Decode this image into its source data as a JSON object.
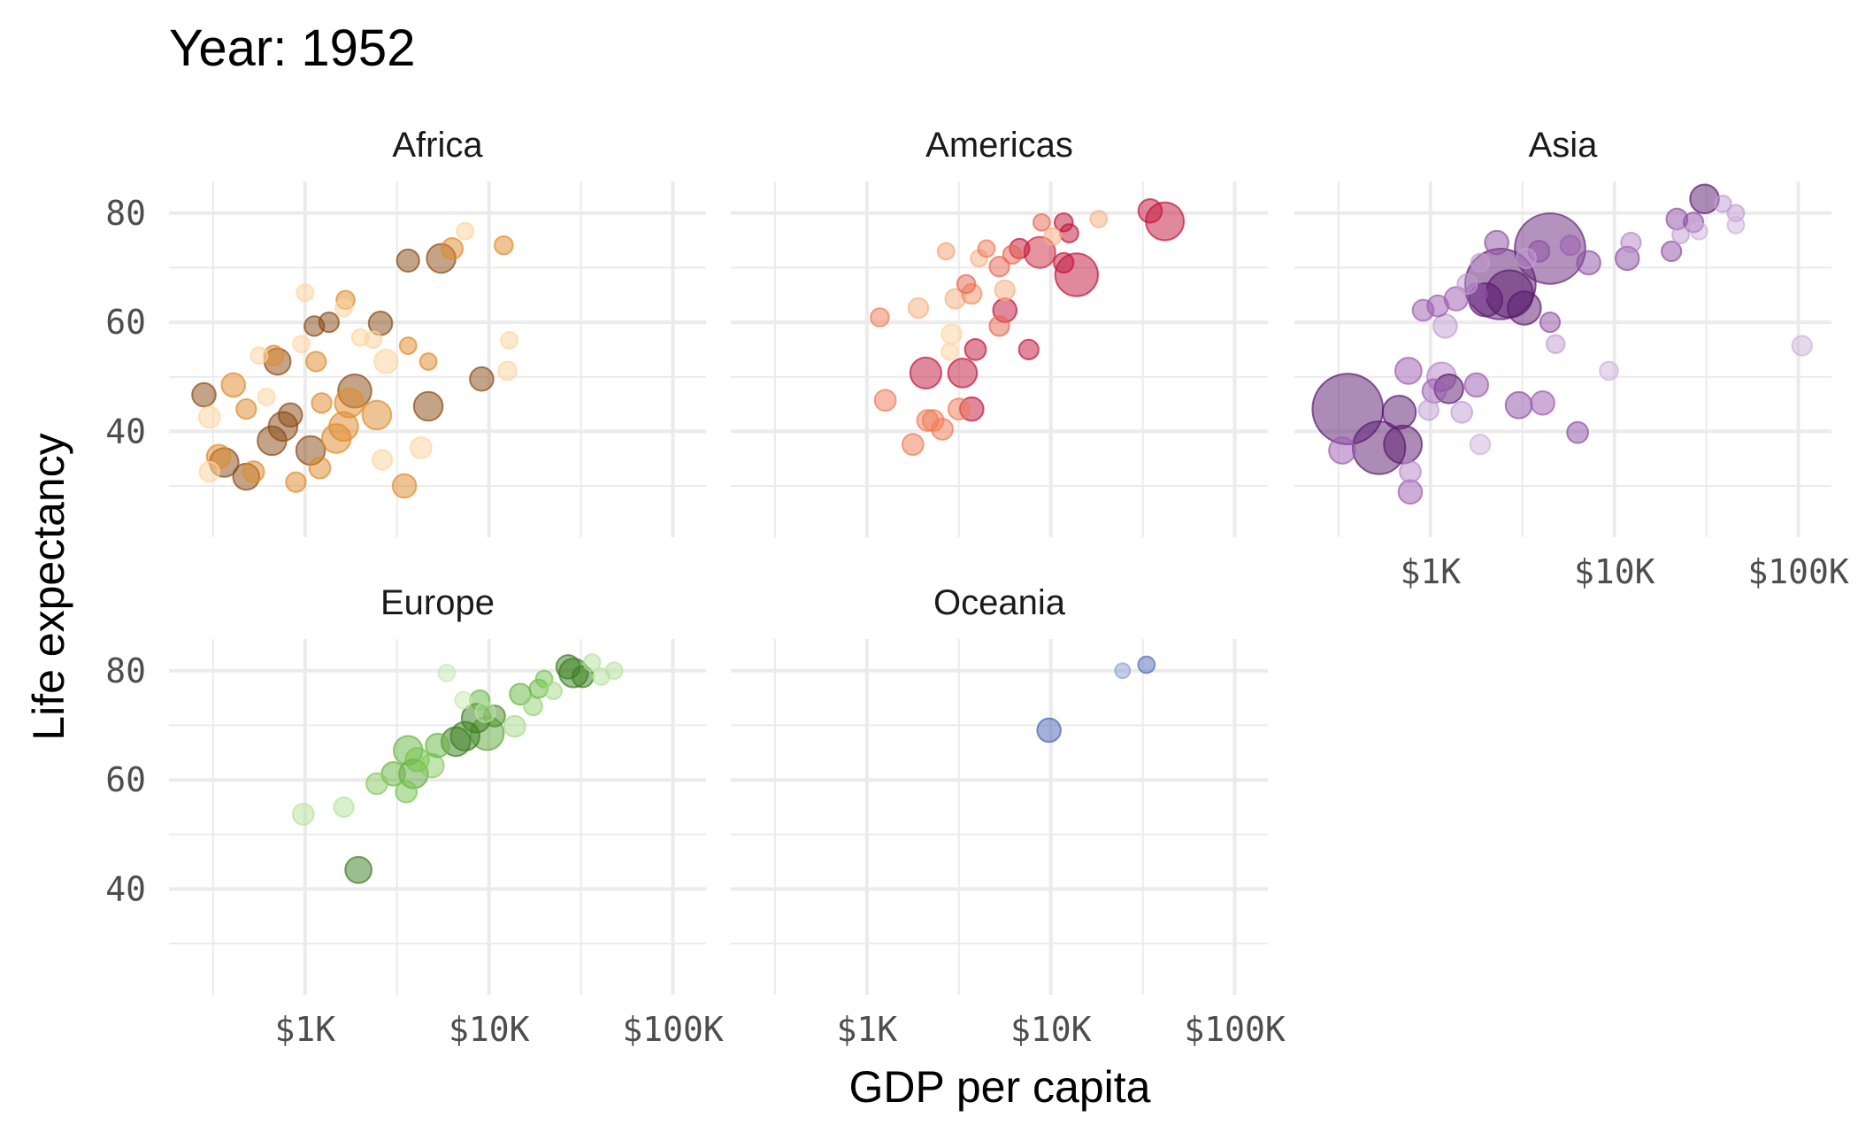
{
  "chart_data": {
    "type": "scatter",
    "title": "Year: 1952",
    "xlabel": "GDP per capita",
    "ylabel": "Life expectancy",
    "x_scale": "log10",
    "x_ticks": [
      {
        "value": 1000,
        "label": "$1K"
      },
      {
        "value": 10000,
        "label": "$10K"
      },
      {
        "value": 100000,
        "label": "$100K"
      }
    ],
    "y_ticks": [
      {
        "value": 40,
        "label": "40"
      },
      {
        "value": 60,
        "label": "60"
      },
      {
        "value": 80,
        "label": "80"
      }
    ],
    "xlim_log10": [
      2.26,
      5.18
    ],
    "ylim": [
      20.6,
      85.8
    ],
    "grid": true,
    "point_format": [
      "log10_gdp",
      "life_expectancy",
      "relative_population",
      "shade"
    ],
    "facets": [
      {
        "name": "Africa",
        "colors": [
          "#fdd49e",
          "#e08a2a",
          "#8a4a14"
        ],
        "points": [
          [
            2.45,
            46.7,
            2,
            1
          ],
          [
            2.48,
            42.6,
            1.6,
            0
          ],
          [
            2.53,
            35.4,
            2,
            0.5
          ],
          [
            2.56,
            34.3,
            3,
            1
          ],
          [
            2.48,
            32.6,
            1.4,
            0
          ],
          [
            2.61,
            48.5,
            2,
            0.5
          ],
          [
            2.68,
            44.1,
            1.4,
            0.5
          ],
          [
            2.68,
            31.7,
            2.5,
            1
          ],
          [
            2.72,
            32.6,
            1.6,
            0.5
          ],
          [
            2.79,
            46.3,
            1,
            0
          ],
          [
            2.83,
            53.9,
            1.4,
            0.5
          ],
          [
            2.85,
            52.8,
            2.5,
            1
          ],
          [
            2.88,
            40.9,
            3,
            1
          ],
          [
            2.92,
            43,
            2,
            1
          ],
          [
            2.95,
            30.7,
            1.4,
            0.5
          ],
          [
            3.0,
            65.4,
            1,
            0
          ],
          [
            3.03,
            36.5,
            3,
            1
          ],
          [
            3.05,
            59.3,
            1.4,
            1
          ],
          [
            3.06,
            52.8,
            1.4,
            0.5
          ],
          [
            3.09,
            45.2,
            1.4,
            0.5
          ],
          [
            3.13,
            60,
            1.4,
            1
          ],
          [
            3.17,
            38.7,
            3,
            0.5
          ],
          [
            3.21,
            62.6,
            1,
            0
          ],
          [
            3.22,
            64.1,
            1.2,
            0.5
          ],
          [
            3.24,
            45.2,
            3,
            0.5
          ],
          [
            3.27,
            47.4,
            4,
            1
          ],
          [
            3.3,
            57.2,
            1,
            0
          ],
          [
            3.39,
            43,
            3,
            0.5
          ],
          [
            3.41,
            59.8,
            2,
            1
          ],
          [
            3.42,
            34.8,
            1.4,
            0
          ],
          [
            3.44,
            52.8,
            2,
            0
          ],
          [
            3.56,
            71.3,
            1.8,
            1
          ],
          [
            3.56,
            55.7,
            1,
            0.5
          ],
          [
            3.54,
            30,
            2,
            0.5
          ],
          [
            3.67,
            52.8,
            1,
            0.5
          ],
          [
            3.63,
            37,
            1.6,
            0
          ],
          [
            3.67,
            44.6,
            3,
            1
          ],
          [
            3.74,
            71.7,
            3,
            1
          ],
          [
            3.8,
            73.5,
            1.6,
            0.5
          ],
          [
            3.87,
            76.7,
            1,
            0
          ],
          [
            3.96,
            49.6,
            2,
            1
          ],
          [
            4.08,
            74.1,
            1.2,
            0.5
          ],
          [
            4.1,
            51.1,
            1.2,
            0
          ],
          [
            4.11,
            56.7,
            1,
            0
          ],
          [
            3.21,
            40.9,
            3,
            0.5
          ],
          [
            2.82,
            38.3,
            3,
            1
          ],
          [
            2.98,
            56,
            1,
            0
          ],
          [
            2.75,
            53.9,
            1,
            0
          ],
          [
            3.08,
            33.3,
            1.6,
            0.5
          ],
          [
            3.37,
            56.8,
            1,
            0
          ]
        ]
      },
      {
        "name": "Americas",
        "colors": [
          "#fdd49e",
          "#f07b55",
          "#c2143a"
        ],
        "points": [
          [
            3.07,
            60.9,
            1.2,
            0.5
          ],
          [
            3.1,
            45.7,
            1.6,
            0.5
          ],
          [
            3.25,
            37.6,
            1.6,
            0.5
          ],
          [
            3.28,
            62.6,
            1.4,
            0.2
          ],
          [
            3.32,
            50.7,
            3.5,
            1
          ],
          [
            3.33,
            42,
            1.6,
            0.5
          ],
          [
            3.36,
            42,
            1.6,
            0.5
          ],
          [
            3.41,
            40.4,
            1.6,
            0.5
          ],
          [
            3.43,
            73,
            1,
            0.3
          ],
          [
            3.45,
            54.6,
            1,
            0
          ],
          [
            3.46,
            57.8,
            1.4,
            0
          ],
          [
            3.48,
            64.3,
            1.4,
            0.2
          ],
          [
            3.5,
            44.1,
            1.6,
            0.5
          ],
          [
            3.52,
            50.7,
            3,
            1
          ],
          [
            3.54,
            67,
            1.2,
            0.6
          ],
          [
            3.59,
            55,
            1.6,
            1
          ],
          [
            3.57,
            65.2,
            1.4,
            0.4
          ],
          [
            3.57,
            44.1,
            2,
            1
          ],
          [
            3.61,
            71.7,
            1,
            0.2
          ],
          [
            3.65,
            73.5,
            1,
            0.5
          ],
          [
            3.72,
            70.2,
            1.4,
            0.6
          ],
          [
            3.75,
            65.9,
            1.4,
            0.2
          ],
          [
            3.75,
            62.2,
            2,
            1
          ],
          [
            3.72,
            59.3,
            1.4,
            0.6
          ],
          [
            3.79,
            72.4,
            1.2,
            0.6
          ],
          [
            3.83,
            73.5,
            1.4,
            1
          ],
          [
            3.88,
            55,
            1.4,
            1
          ],
          [
            3.94,
            72.8,
            3.5,
            0.9
          ],
          [
            3.95,
            78.3,
            1,
            0.6
          ],
          [
            4.01,
            75.7,
            1,
            0.2
          ],
          [
            4.07,
            78.3,
            1.2,
            1
          ],
          [
            4.1,
            76.3,
            1.2,
            1
          ],
          [
            4.07,
            70.9,
            1.4,
            1
          ],
          [
            4.14,
            68.7,
            6.6,
            1
          ],
          [
            4.26,
            78.9,
            1,
            0.2
          ],
          [
            4.54,
            80.4,
            2,
            1
          ],
          [
            4.62,
            78.5,
            5.2,
            1
          ]
        ]
      },
      {
        "name": "Asia",
        "colors": [
          "#dcc6e6",
          "#9b5cb2",
          "#5a1a6e"
        ],
        "points": [
          [
            2.55,
            44.1,
            18,
            1
          ],
          [
            2.52,
            36.5,
            2.5,
            0.5
          ],
          [
            2.72,
            37,
            10,
            1
          ],
          [
            2.85,
            37.6,
            5.2,
            1
          ],
          [
            2.83,
            43.5,
            4,
            1
          ],
          [
            2.88,
            51.1,
            2.5,
            0.5
          ],
          [
            2.89,
            32.6,
            1.6,
            0.3
          ],
          [
            2.89,
            28.9,
            2,
            0.5
          ],
          [
            2.96,
            62.2,
            1.6,
            0.5
          ],
          [
            2.99,
            43.9,
            1.4,
            0.2
          ],
          [
            3.02,
            47.4,
            2,
            0.5
          ],
          [
            3.06,
            50,
            3,
            0.3
          ],
          [
            3.1,
            47.8,
            3,
            1
          ],
          [
            3.04,
            63,
            1.6,
            0.5
          ],
          [
            3.08,
            59.3,
            2,
            0.2
          ],
          [
            3.14,
            64.3,
            2,
            0.5
          ],
          [
            3.17,
            43.5,
            1.6,
            0.2
          ],
          [
            3.2,
            67,
            1.4,
            0.2
          ],
          [
            3.25,
            48.5,
            2,
            0.5
          ],
          [
            3.25,
            65.2,
            1.6,
            0.6
          ],
          [
            3.27,
            70.9,
            1.2,
            0.2
          ],
          [
            3.3,
            64.1,
            4,
            1
          ],
          [
            3.27,
            37.6,
            1.4,
            0.1
          ],
          [
            3.36,
            74.6,
            2,
            0.6
          ],
          [
            3.38,
            67,
            18,
            1
          ],
          [
            3.43,
            65.2,
            8,
            1
          ],
          [
            3.48,
            44.8,
            2.5,
            0.6
          ],
          [
            3.51,
            62.6,
            4,
            1
          ],
          [
            3.52,
            71.7,
            1.4,
            0.2
          ],
          [
            3.59,
            73,
            1.6,
            0.6
          ],
          [
            3.61,
            45.2,
            2,
            0.5
          ],
          [
            3.65,
            60,
            1.4,
            0.6
          ],
          [
            3.68,
            56,
            1.2,
            0.2
          ],
          [
            3.65,
            73.5,
            18,
            0.9
          ],
          [
            3.76,
            74.1,
            1.4,
            0.5
          ],
          [
            3.8,
            39.8,
            1.6,
            0.6
          ],
          [
            3.86,
            70.9,
            2,
            0.6
          ],
          [
            3.97,
            51.1,
            1.2,
            0.1
          ],
          [
            4.07,
            71.7,
            2,
            0.6
          ],
          [
            4.09,
            74.6,
            1.4,
            0.3
          ],
          [
            4.31,
            73,
            1.4,
            0.6
          ],
          [
            4.34,
            78.9,
            1.6,
            0.6
          ],
          [
            4.36,
            76,
            1,
            0.2
          ],
          [
            4.43,
            78.3,
            1.4,
            0.6
          ],
          [
            4.49,
            82.6,
            3,
            1
          ],
          [
            4.46,
            76.7,
            1,
            0.1
          ],
          [
            4.59,
            81.7,
            1,
            0.2
          ],
          [
            4.66,
            80,
            1,
            0.2
          ],
          [
            4.66,
            77.8,
            1,
            0.1
          ],
          [
            5.02,
            55.7,
            1.4,
            0.1
          ]
        ]
      },
      {
        "name": "Europe",
        "colors": [
          "#c7e9b0",
          "#74c44c",
          "#3a7d1e"
        ],
        "points": [
          [
            2.99,
            53.7,
            1.6,
            0.1
          ],
          [
            3.21,
            55,
            1.4,
            0.1
          ],
          [
            3.29,
            43.5,
            2.5,
            1
          ],
          [
            3.39,
            59.3,
            1.6,
            0.4
          ],
          [
            3.48,
            61.1,
            2,
            0.6
          ],
          [
            3.55,
            57.8,
            1.6,
            0.5
          ],
          [
            3.56,
            65.4,
            3,
            0.6
          ],
          [
            3.59,
            61.1,
            3,
            0.7
          ],
          [
            3.61,
            63.7,
            2,
            0.5
          ],
          [
            3.69,
            62.6,
            2,
            0.4
          ],
          [
            3.72,
            66.3,
            2,
            0.6
          ],
          [
            3.77,
            79.6,
            1,
            0
          ],
          [
            3.82,
            67,
            3,
            1
          ],
          [
            3.87,
            68,
            3,
            1
          ],
          [
            3.86,
            74.6,
            1,
            0
          ],
          [
            3.93,
            71.3,
            3,
            1
          ],
          [
            3.95,
            74.6,
            1.4,
            0.6
          ],
          [
            3.98,
            72.4,
            1.4,
            0.1
          ],
          [
            3.99,
            68.5,
            4,
            0.7
          ],
          [
            4.03,
            71.7,
            1.6,
            0.9
          ],
          [
            4.14,
            69.8,
            1.6,
            0.2
          ],
          [
            4.17,
            75.7,
            1.6,
            0.6
          ],
          [
            4.24,
            73.5,
            1.2,
            0.3
          ],
          [
            4.27,
            76.7,
            1.2,
            0.6
          ],
          [
            4.3,
            78.5,
            1,
            0.5
          ],
          [
            4.35,
            76.3,
            1,
            0.2
          ],
          [
            4.43,
            80.7,
            2,
            1
          ],
          [
            4.46,
            79.6,
            3,
            1
          ],
          [
            4.51,
            78.9,
            1.6,
            1
          ],
          [
            4.56,
            81.5,
            1,
            0.1
          ],
          [
            4.61,
            78.9,
            1,
            0.1
          ],
          [
            4.68,
            80,
            1,
            0.1
          ]
        ]
      },
      {
        "name": "Oceania",
        "colors": [
          "#a9b8e0",
          "#7b8fcc",
          "#4a64b4"
        ],
        "points": [
          [
            3.99,
            69.1,
            2,
            1
          ],
          [
            4.39,
            80,
            0.8,
            0.3
          ],
          [
            4.52,
            81.1,
            1,
            0.9
          ]
        ]
      }
    ]
  }
}
